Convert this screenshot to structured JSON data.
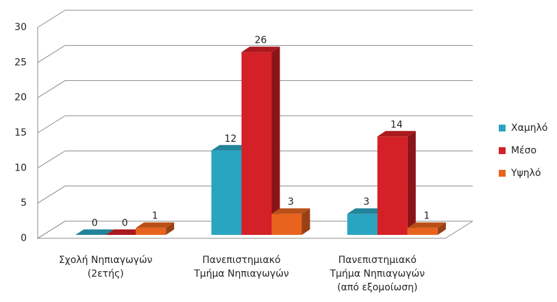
{
  "chart_data": {
    "type": "bar3d",
    "categories": [
      "Σχολή Νηπιαγωγών\n(2ετής)",
      "Πανεπιστημιακό\nΤμήμα Νηπιαγωγών",
      "Πανεπιστημιακό\nΤμήμα Νηπιαγωγών\n(από εξομοίωση)"
    ],
    "series": [
      {
        "name": "Χαμηλό",
        "color": "#2aa5c0",
        "values": [
          0,
          12,
          3
        ]
      },
      {
        "name": "Μέσο",
        "color": "#d42027",
        "values": [
          0,
          26,
          14
        ]
      },
      {
        "name": "Υψηλό",
        "color": "#e8641e",
        "values": [
          1,
          3,
          1
        ]
      }
    ],
    "ylim": [
      0,
      30
    ],
    "yticks": [
      0,
      5,
      10,
      15,
      20,
      25,
      30
    ],
    "grid": true,
    "legend": "right"
  }
}
